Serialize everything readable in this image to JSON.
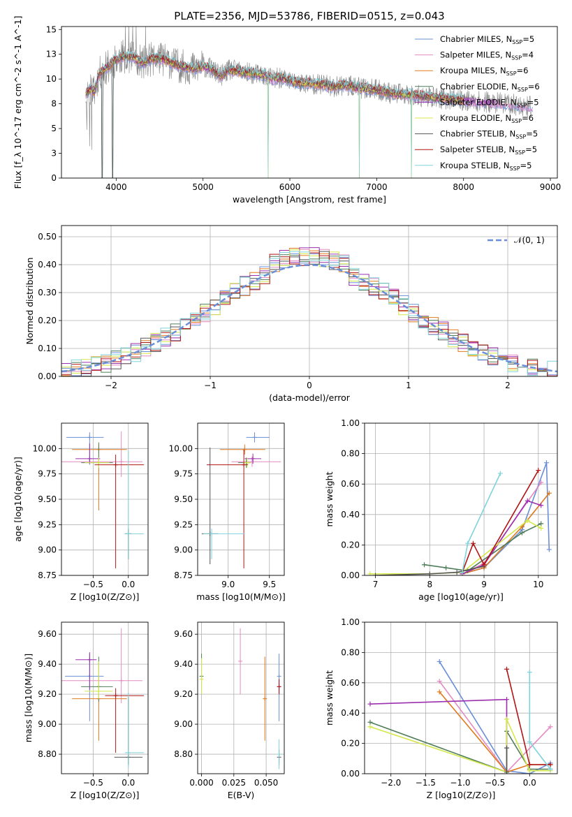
{
  "figure": {
    "title": "PLATE=2356, MJD=53786, FIBERID=0515, z=0.043"
  },
  "series": [
    {
      "name": "Chabrier MILES",
      "nssp": "5",
      "color": "#6a8fd8"
    },
    {
      "name": "Salpeter MILES",
      "nssp": "4",
      "color": "#e38bc1"
    },
    {
      "name": "Kroupa MILES",
      "nssp": "6",
      "color": "#e07a1f"
    },
    {
      "name": "Chabrier ELODIE",
      "nssp": "6",
      "color": "#4f7d5a"
    },
    {
      "name": "Salpeter ELODIE",
      "nssp": "5",
      "color": "#9b2fae"
    },
    {
      "name": "Kroupa ELODIE",
      "nssp": "6",
      "color": "#d4e84a"
    },
    {
      "name": "Chabrier STELIB",
      "nssp": "5",
      "color": "#555555"
    },
    {
      "name": "Salpeter STELIB",
      "nssp": "5",
      "color": "#b01515"
    },
    {
      "name": "Kroupa STELIB",
      "nssp": "5",
      "color": "#7fd3dc"
    }
  ],
  "chart_data": [
    {
      "id": "spectrum",
      "type": "line",
      "title": "PLATE=2356, MJD=53786, FIBERID=0515, z=0.043",
      "xlabel": "wavelength [Angstrom, rest frame]",
      "ylabel": "Flux [f_λ 10^-17 erg cm^-2 s^-1 A^-1]",
      "xlim": [
        3370,
        9080
      ],
      "ylim": [
        0,
        15.3
      ],
      "xticks": [
        4000,
        5000,
        6000,
        7000,
        8000,
        9000
      ],
      "yticks": [
        0.0,
        2.5,
        5.0,
        7.5,
        10.0,
        12.5,
        15.0
      ],
      "legend_position": "upper right",
      "data_color": "#808080",
      "continuum": {
        "x": [
          3650,
          3700,
          3750,
          3800,
          3900,
          4000,
          4100,
          4200,
          4300,
          4400,
          4500,
          4600,
          4700,
          4800,
          4900,
          5000,
          5100,
          5200,
          5300,
          5400,
          5500,
          5600,
          5700,
          5800,
          5900,
          6000,
          6100,
          6200,
          6300,
          6400,
          6500,
          6600,
          6700,
          6800,
          6900,
          7000,
          7200,
          7400,
          7600,
          7800,
          8000,
          8200,
          8400,
          8600,
          8800
        ],
        "y": [
          8.5,
          9.0,
          8.7,
          10.5,
          11.2,
          12.0,
          12.3,
          12.2,
          11.6,
          12.0,
          12.1,
          11.8,
          11.4,
          11.2,
          11.0,
          11.3,
          11.0,
          10.3,
          10.9,
          10.8,
          10.6,
          10.5,
          10.4,
          10.0,
          10.1,
          9.8,
          9.6,
          9.6,
          9.5,
          9.4,
          9.2,
          9.4,
          9.3,
          9.1,
          9.0,
          8.9,
          8.5,
          8.4,
          8.2,
          8.0,
          7.9,
          7.7,
          7.6,
          7.4,
          7.2
        ]
      },
      "data_range": [
        3650,
        8780
      ],
      "data_noise": 1.1,
      "model_noise": 0.35,
      "model_ranges": [
        [
          3650,
          8800
        ],
        [
          3650,
          8800
        ],
        [
          3650,
          8000
        ],
        [
          3650,
          8000
        ],
        [
          3650,
          8400
        ],
        [
          3650,
          8000
        ],
        [
          3650,
          8000
        ],
        [
          3650,
          8000
        ],
        [
          3650,
          8000
        ]
      ],
      "model_dips": [
        [
          3840,
          0
        ],
        [
          3960,
          0
        ],
        [
          5750,
          0
        ],
        [
          6800,
          0
        ],
        [
          7400,
          0
        ]
      ]
    },
    {
      "id": "residuals",
      "type": "histogram",
      "xlabel": "(data-model)/error",
      "ylabel": "Normed distribution",
      "xlim": [
        -2.5,
        2.5
      ],
      "ylim": [
        0,
        0.54
      ],
      "xticks": [
        -2,
        -1,
        0,
        1,
        2
      ],
      "yticks": [
        0.0,
        0.1,
        0.2,
        0.3,
        0.4,
        0.5
      ],
      "bin_width": 0.1,
      "gaussian_label": "𝒩(0, 1)",
      "gaussian_color": "#6a8fd8",
      "seed_jitter": 0.035
    },
    {
      "id": "age_vs_Z",
      "type": "errorbar",
      "xlabel": "Z [log10(Z/Z⊙)]",
      "ylabel": "age [log10(age/yr)]",
      "xlim": [
        -0.95,
        0.28
      ],
      "ylim": [
        8.75,
        10.25
      ],
      "xticks": [
        -0.5,
        0.0
      ],
      "yticks": [
        8.75,
        9.0,
        9.25,
        9.5,
        9.75,
        10.0
      ],
      "points": [
        {
          "s": 0,
          "x": -0.55,
          "y": 10.11,
          "xerr": [
            0.33,
            0.2
          ],
          "yerr": [
            0.27,
            0.05
          ]
        },
        {
          "s": 1,
          "x": -0.1,
          "y": 9.87,
          "xerr": [
            0.85,
            0.3
          ],
          "yerr": [
            0.15,
            0.3
          ]
        },
        {
          "s": 2,
          "x": -0.42,
          "y": 9.99,
          "xerr": [
            0.38,
            0.4
          ],
          "yerr": [
            0.6,
            0.05
          ]
        },
        {
          "s": 3,
          "x": -0.42,
          "y": 9.86,
          "xerr": [
            0.25,
            0.2
          ],
          "yerr": [
            0.05,
            0.2
          ]
        },
        {
          "s": 4,
          "x": -0.55,
          "y": 9.9,
          "xerr": [
            0.2,
            0.15
          ],
          "yerr": [
            0.05,
            0.15
          ]
        },
        {
          "s": 5,
          "x": -0.42,
          "y": 9.86,
          "xerr": [
            0.2,
            0.15
          ],
          "yerr": [
            0.05,
            0.05
          ]
        },
        {
          "s": 6,
          "x": 0.0,
          "y": 9.16,
          "xerr": [
            0.05,
            0.05
          ],
          "yerr": [
            0.25,
            0.05
          ]
        },
        {
          "s": 7,
          "x": -0.18,
          "y": 9.84,
          "xerr": [
            0.3,
            0.4
          ],
          "yerr": [
            1.02,
            0.1
          ]
        },
        {
          "s": 8,
          "x": 0.0,
          "y": 9.16,
          "xerr": [
            0.05,
            0.22
          ],
          "yerr": [
            0.25,
            0.82
          ]
        }
      ]
    },
    {
      "id": "age_vs_mass",
      "type": "errorbar",
      "xlabel": "mass [log10(M/M⊙)]",
      "ylabel": "",
      "xlim": [
        8.63,
        9.68
      ],
      "ylim": [
        8.75,
        10.25
      ],
      "xticks": [
        9.0,
        9.5
      ],
      "yticks": [
        8.75,
        9.0,
        9.25,
        9.5,
        9.75,
        10.0
      ],
      "points": [
        {
          "s": 0,
          "x": 9.32,
          "y": 10.11,
          "xerr": [
            0.1,
            0.18
          ],
          "yerr": [
            0.05,
            0.05
          ]
        },
        {
          "s": 1,
          "x": 9.29,
          "y": 9.87,
          "xerr": [
            0.25,
            0.35
          ],
          "yerr": [
            0.05,
            0.05
          ]
        },
        {
          "s": 2,
          "x": 9.2,
          "y": 9.99,
          "xerr": [
            0.3,
            0.25
          ],
          "yerr": [
            0.05,
            0.05
          ]
        },
        {
          "s": 3,
          "x": 9.22,
          "y": 9.86,
          "xerr": [
            0.1,
            0.05
          ],
          "yerr": [
            0.05,
            0.05
          ]
        },
        {
          "s": 4,
          "x": 9.3,
          "y": 9.9,
          "xerr": [
            0.1,
            0.1
          ],
          "yerr": [
            0.05,
            0.05
          ]
        },
        {
          "s": 5,
          "x": 9.23,
          "y": 9.86,
          "xerr": [
            0.05,
            0.05
          ],
          "yerr": [
            0.05,
            0.05
          ]
        },
        {
          "s": 6,
          "x": 8.78,
          "y": 9.16,
          "xerr": [
            0.1,
            0.1
          ],
          "yerr": [
            0.3,
            0.85
          ]
        },
        {
          "s": 7,
          "x": 9.19,
          "y": 9.84,
          "xerr": [
            0.45,
            0.05
          ],
          "yerr": [
            1.02,
            0.15
          ]
        },
        {
          "s": 8,
          "x": 8.8,
          "y": 9.16,
          "xerr": [
            0.1,
            0.4
          ],
          "yerr": [
            0.25,
            0.05
          ]
        }
      ]
    },
    {
      "id": "weight_vs_age",
      "type": "line",
      "xlabel": "age [log10(age/yr)]",
      "ylabel": "mass weight",
      "xlim": [
        6.8,
        10.35
      ],
      "ylim": [
        0,
        1.0
      ],
      "xticks": [
        7,
        8,
        9,
        10
      ],
      "yticks": [
        0.0,
        0.2,
        0.4,
        0.6,
        0.8,
        1.0
      ],
      "lines": [
        {
          "s": 0,
          "x": [
            8.6,
            9.0,
            9.7,
            10.15,
            10.2
          ],
          "y": [
            0.01,
            0.05,
            0.3,
            0.74,
            0.17
          ]
        },
        {
          "s": 1,
          "x": [
            8.6,
            9.0,
            10.05
          ],
          "y": [
            0.01,
            0.08,
            0.61
          ]
        },
        {
          "s": 2,
          "x": [
            8.6,
            9.0,
            9.7,
            10.2
          ],
          "y": [
            0.01,
            0.05,
            0.32,
            0.54
          ]
        },
        {
          "s": 3,
          "x": [
            7.9,
            8.3,
            8.7,
            9.7,
            10.05
          ],
          "y": [
            0.07,
            0.05,
            0.03,
            0.28,
            0.34
          ]
        },
        {
          "s": 4,
          "x": [
            8.6,
            9.0,
            9.8,
            10.05
          ],
          "y": [
            0.01,
            0.07,
            0.49,
            0.46
          ]
        },
        {
          "s": 5,
          "x": [
            6.9,
            8.0,
            8.6,
            9.8,
            10.05
          ],
          "y": [
            0.01,
            0.01,
            0.02,
            0.36,
            0.31
          ]
        },
        {
          "s": 6,
          "x": [
            7.0,
            8.0,
            8.5,
            9.0
          ],
          "y": [
            0.0,
            0.01,
            0.02,
            0.06
          ]
        },
        {
          "s": 7,
          "x": [
            8.6,
            8.8,
            9.0,
            10.0
          ],
          "y": [
            0.02,
            0.21,
            0.07,
            0.69
          ]
        },
        {
          "s": 8,
          "x": [
            8.6,
            8.7,
            9.3
          ],
          "y": [
            0.02,
            0.21,
            0.67
          ]
        }
      ]
    },
    {
      "id": "mass_vs_Z",
      "type": "errorbar",
      "xlabel": "Z [log10(Z/Z⊙)]",
      "ylabel": "mass [log10(M/M⊙)]",
      "xlim": [
        -0.95,
        0.28
      ],
      "ylim": [
        8.67,
        9.68
      ],
      "xticks": [
        -0.5,
        0.0
      ],
      "yticks": [
        8.8,
        9.0,
        9.2,
        9.4,
        9.6
      ],
      "points": [
        {
          "s": 0,
          "x": -0.55,
          "y": 9.32,
          "xerr": [
            0.35,
            0.2
          ],
          "yerr": [
            0.3,
            0.15
          ]
        },
        {
          "s": 1,
          "x": -0.1,
          "y": 9.29,
          "xerr": [
            0.85,
            0.3
          ],
          "yerr": [
            0.15,
            0.35
          ]
        },
        {
          "s": 2,
          "x": -0.42,
          "y": 9.17,
          "xerr": [
            0.38,
            0.4
          ],
          "yerr": [
            0.28,
            0.25
          ]
        },
        {
          "s": 3,
          "x": -0.42,
          "y": 9.25,
          "xerr": [
            0.25,
            0.2
          ],
          "yerr": [
            0.1,
            0.2
          ]
        },
        {
          "s": 4,
          "x": -0.55,
          "y": 9.43,
          "xerr": [
            0.2,
            0.1
          ],
          "yerr": [
            0.2,
            0.05
          ]
        },
        {
          "s": 5,
          "x": -0.42,
          "y": 9.22,
          "xerr": [
            0.2,
            0.2
          ],
          "yerr": [
            0.05,
            0.2
          ]
        },
        {
          "s": 6,
          "x": 0.0,
          "y": 8.78,
          "xerr": [
            0.2,
            0.2
          ],
          "yerr": [
            0.05,
            0.4
          ]
        },
        {
          "s": 7,
          "x": -0.18,
          "y": 9.19,
          "xerr": [
            0.15,
            0.4
          ],
          "yerr": [
            0.38,
            0.05
          ]
        },
        {
          "s": 8,
          "x": 0.0,
          "y": 8.81,
          "xerr": [
            0.05,
            0.22
          ],
          "yerr": [
            0.1,
            0.4
          ]
        }
      ]
    },
    {
      "id": "mass_vs_ebv",
      "type": "errorbar",
      "xlabel": "E(B-V)",
      "ylabel": "",
      "xlim": [
        -0.003,
        0.064
      ],
      "ylim": [
        8.67,
        9.68
      ],
      "xticks": [
        0.0,
        0.025,
        0.05
      ],
      "yticks": [
        8.8,
        9.0,
        9.2,
        9.4,
        9.6
      ],
      "points": [
        {
          "s": 0,
          "x": 0.06,
          "y": 9.32,
          "xerr": [
            0,
            0
          ],
          "yerr": [
            0.3,
            0.15
          ]
        },
        {
          "s": 1,
          "x": 0.03,
          "y": 9.42,
          "xerr": [
            0,
            0
          ],
          "yerr": [
            0.22,
            0.22
          ]
        },
        {
          "s": 2,
          "x": 0.049,
          "y": 9.17,
          "xerr": [
            0,
            0
          ],
          "yerr": [
            0.28,
            0.28
          ]
        },
        {
          "s": 3,
          "x": 0.0,
          "y": 9.32,
          "xerr": [
            0,
            0
          ],
          "yerr": [
            0.12,
            0.15
          ]
        },
        {
          "s": 4,
          "x": 0.06,
          "y": 9.25,
          "xerr": [
            0,
            0
          ],
          "yerr": [
            0.05,
            0.05
          ]
        },
        {
          "s": 5,
          "x": 0.0,
          "y": 9.3,
          "xerr": [
            0,
            0
          ],
          "yerr": [
            0.1,
            0.14
          ]
        },
        {
          "s": 6,
          "x": 0.06,
          "y": 8.78,
          "xerr": [
            0,
            0
          ],
          "yerr": [
            0.05,
            0.05
          ]
        },
        {
          "s": 7,
          "x": 0.06,
          "y": 9.25,
          "xerr": [
            0,
            0
          ],
          "yerr": [
            0.05,
            0.05
          ]
        },
        {
          "s": 8,
          "x": 0.06,
          "y": 8.8,
          "xerr": [
            0,
            0
          ],
          "yerr": [
            0.1,
            0.1
          ]
        }
      ]
    },
    {
      "id": "weight_vs_Z",
      "type": "line",
      "xlabel": "Z [log10(Z/Z⊙)]",
      "ylabel": "mass weight",
      "xlim": [
        -2.38,
        0.4
      ],
      "ylim": [
        0,
        1.0
      ],
      "xticks": [
        -2.0,
        -1.5,
        -1.0,
        -0.5,
        0.0
      ],
      "yticks": [
        0.0,
        0.2,
        0.4,
        0.6,
        0.8,
        1.0
      ],
      "lines": [
        {
          "s": 0,
          "x": [
            -1.3,
            -0.33,
            0.0,
            0.3
          ],
          "y": [
            0.74,
            0.02,
            0.0,
            0.07
          ]
        },
        {
          "s": 1,
          "x": [
            -1.3,
            -0.33,
            0.3
          ],
          "y": [
            0.61,
            0.01,
            0.31
          ]
        },
        {
          "s": 2,
          "x": [
            -1.3,
            -0.33,
            0.0,
            0.3
          ],
          "y": [
            0.54,
            0.01,
            0.06,
            0.06
          ]
        },
        {
          "s": 3,
          "x": [
            -2.3,
            -0.33,
            -0.33,
            0.0,
            0.3
          ],
          "y": [
            0.34,
            0.01,
            0.28,
            0.03,
            0.03
          ]
        },
        {
          "s": 4,
          "x": [
            -2.3,
            -0.33,
            -0.33
          ],
          "y": [
            0.46,
            0.49,
            0.01
          ]
        },
        {
          "s": 5,
          "x": [
            -2.3,
            -0.33,
            -0.33,
            0.0,
            0.3
          ],
          "y": [
            0.31,
            0.01,
            0.36,
            0.02,
            0.02
          ]
        },
        {
          "s": 6,
          "x": [
            -0.33,
            -0.33
          ],
          "y": [
            0.17,
            0.01
          ]
        },
        {
          "s": 7,
          "x": [
            -0.33,
            -0.0,
            0.3
          ],
          "y": [
            0.69,
            0.06,
            0.06
          ]
        },
        {
          "s": 8,
          "x": [
            0.0,
            0.0,
            0.3
          ],
          "y": [
            0.67,
            0.21,
            0.03
          ]
        }
      ]
    }
  ]
}
